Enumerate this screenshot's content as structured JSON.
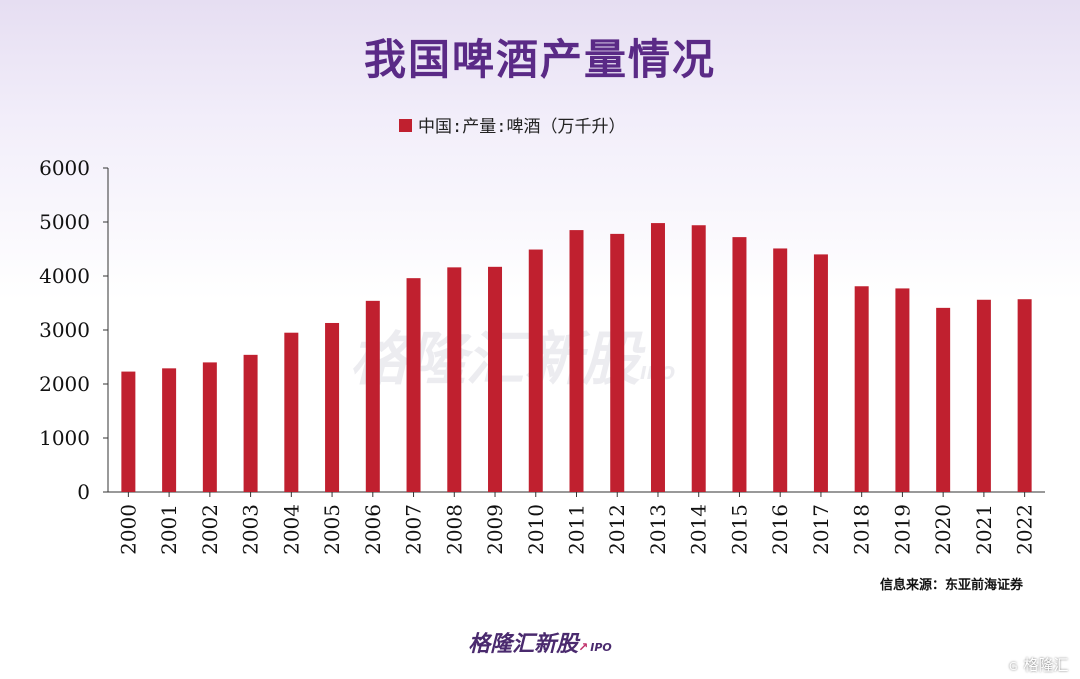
{
  "title": "我国啤酒产量情况",
  "source": "信息来源：东亚前海证券",
  "footer_brand": "格隆汇新股",
  "footer_brand_sub": "IPO",
  "watermark": "格隆汇新股",
  "watermark_sub": "IPO",
  "corner_badge": "格隆汇",
  "colors": {
    "bar": "#c0202f",
    "title": "#5a2a86"
  },
  "chart_data": {
    "type": "bar",
    "categories": [
      "2000",
      "2001",
      "2002",
      "2003",
      "2004",
      "2005",
      "2006",
      "2007",
      "2008",
      "2009",
      "2010",
      "2011",
      "2012",
      "2013",
      "2014",
      "2015",
      "2016",
      "2017",
      "2018",
      "2019",
      "2020",
      "2021",
      "2022"
    ],
    "series": [
      {
        "name": "中国:产量:啤酒（万千升）",
        "values": [
          2230,
          2290,
          2400,
          2540,
          2950,
          3130,
          3540,
          3960,
          4160,
          4170,
          4490,
          4850,
          4780,
          4980,
          4940,
          4720,
          4510,
          4400,
          3810,
          3770,
          3410,
          3560,
          3570
        ]
      }
    ],
    "ylim": [
      0,
      6000
    ],
    "yticks": [
      0,
      1000,
      2000,
      3000,
      4000,
      5000,
      6000
    ],
    "legend_position": "top-center",
    "grid": false
  }
}
